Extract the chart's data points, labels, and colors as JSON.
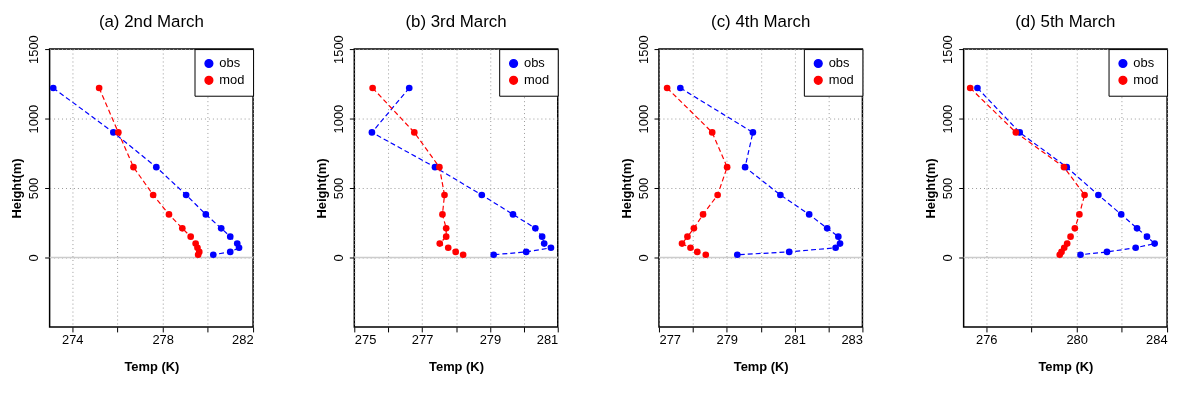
{
  "chart_data": [
    {
      "type": "line",
      "title": "(a) 2nd March",
      "xlabel": "Temp (K)",
      "ylabel": "Height(m)",
      "xlim": [
        273,
        282
      ],
      "ylim": [
        -500,
        1500
      ],
      "xticks": [
        274,
        {
          "value": 276,
          "label": null
        },
        278,
        {
          "value": 280,
          "label": null
        },
        282
      ],
      "yticks": [
        0,
        500,
        1000,
        1500
      ],
      "grid": true,
      "legend": "top right",
      "marker": "circle",
      "line_style": "dashed",
      "ref_lines": [
        {
          "axis": "y",
          "value": 0,
          "color": "#cccccc"
        }
      ],
      "series": [
        {
          "name": "obs",
          "color": "#0000ff",
          "x": [
            273.16,
            275.82,
            277.72,
            279.04,
            279.91,
            280.59,
            280.99,
            281.3,
            281.38,
            280.99,
            280.24
          ],
          "values": [
            1220,
            900,
            650,
            450,
            310,
            210,
            150,
            100,
            70,
            40,
            20
          ]
        },
        {
          "name": "mod",
          "color": "#ff0000",
          "x": [
            275.19,
            276.04,
            276.71,
            277.58,
            278.28,
            278.87,
            279.24,
            279.46,
            279.54,
            279.62,
            279.57
          ],
          "values": [
            1220,
            900,
            650,
            450,
            310,
            210,
            150,
            100,
            70,
            40,
            20
          ]
        }
      ]
    },
    {
      "type": "line",
      "title": "(b) 3rd March",
      "xlabel": "Temp (K)",
      "ylabel": "Height(m)",
      "xlim": [
        275,
        281
      ],
      "ylim": [
        -500,
        1500
      ],
      "xticks": [
        275,
        {
          "value": 276,
          "label": null
        },
        277,
        {
          "value": 278,
          "label": null
        },
        279,
        {
          "value": 280,
          "label": null
        },
        281
      ],
      "yticks": [
        0,
        500,
        1000,
        1500
      ],
      "grid": true,
      "legend": "top right",
      "marker": "circle",
      "line_style": "dashed",
      "ref_lines": [
        {
          "axis": "y",
          "value": 0,
          "color": "#cccccc"
        }
      ],
      "series": [
        {
          "name": "obs",
          "color": "#0000ff",
          "x": [
            276.62,
            275.52,
            277.38,
            278.76,
            279.68,
            280.34,
            280.54,
            280.6,
            280.8,
            280.07,
            279.11
          ],
          "values": [
            1220,
            900,
            650,
            450,
            310,
            210,
            150,
            100,
            70,
            40,
            20
          ]
        },
        {
          "name": "mod",
          "color": "#ff0000",
          "x": [
            275.54,
            276.77,
            277.51,
            277.66,
            277.6,
            277.71,
            277.71,
            277.52,
            277.77,
            277.99,
            278.21
          ],
          "values": [
            1220,
            900,
            650,
            450,
            310,
            210,
            150,
            100,
            70,
            40,
            20
          ]
        }
      ]
    },
    {
      "type": "line",
      "title": "(c) 4th March",
      "xlabel": "Temp (K)",
      "ylabel": "Height(m)",
      "xlim": [
        277,
        283
      ],
      "ylim": [
        -500,
        1500
      ],
      "xticks": [
        277,
        {
          "value": 278,
          "label": null
        },
        279,
        {
          "value": 280,
          "label": null
        },
        281,
        {
          "value": 282,
          "label": null
        },
        283
      ],
      "yticks": [
        0,
        500,
        1000,
        1500
      ],
      "grid": true,
      "legend": "top right",
      "marker": "circle",
      "line_style": "dashed",
      "ref_lines": [
        {
          "axis": "y",
          "value": 0,
          "color": "#cccccc"
        }
      ],
      "series": [
        {
          "name": "obs",
          "color": "#0000ff",
          "x": [
            277.63,
            279.77,
            279.54,
            280.58,
            281.43,
            281.96,
            282.29,
            282.34,
            282.21,
            280.84,
            279.31
          ],
          "values": [
            1220,
            900,
            650,
            450,
            310,
            210,
            150,
            100,
            70,
            40,
            20
          ]
        },
        {
          "name": "mod",
          "color": "#ff0000",
          "x": [
            277.24,
            278.57,
            279.01,
            278.73,
            278.3,
            278.03,
            277.84,
            277.68,
            277.93,
            278.13,
            278.38
          ],
          "values": [
            1220,
            900,
            650,
            450,
            310,
            210,
            150,
            100,
            70,
            40,
            20
          ]
        }
      ]
    },
    {
      "type": "line",
      "title": "(d) 5th March",
      "xlabel": "Temp (K)",
      "ylabel": "Height(m)",
      "xlim": [
        275,
        284
      ],
      "ylim": [
        -500,
        1500
      ],
      "xticks": [
        276,
        {
          "value": 278,
          "label": null
        },
        280,
        {
          "value": 282,
          "label": null
        },
        284
      ],
      "yticks": [
        0,
        500,
        1000,
        1500
      ],
      "grid": true,
      "legend": "top right",
      "marker": "circle",
      "line_style": "dashed",
      "ref_lines": [
        {
          "axis": "y",
          "value": 0,
          "color": "#cccccc"
        }
      ],
      "series": [
        {
          "name": "obs",
          "color": "#0000ff",
          "x": [
            275.61,
            277.48,
            279.56,
            280.96,
            281.97,
            282.67,
            283.11,
            283.45,
            282.61,
            281.34,
            280.17
          ],
          "values": [
            1220,
            900,
            650,
            450,
            310,
            210,
            150,
            100,
            70,
            40,
            20
          ]
        },
        {
          "name": "mod",
          "color": "#ff0000",
          "x": [
            275.29,
            277.31,
            279.44,
            280.35,
            280.12,
            279.92,
            279.73,
            279.58,
            279.45,
            279.33,
            279.25
          ],
          "values": [
            1220,
            900,
            650,
            450,
            310,
            210,
            150,
            100,
            70,
            40,
            20
          ]
        }
      ]
    }
  ]
}
